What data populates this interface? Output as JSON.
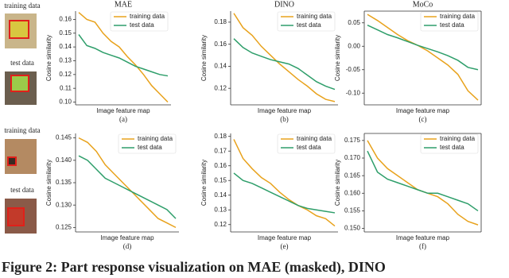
{
  "image_labels": [
    "training data",
    "test data",
    "training data",
    "test data"
  ],
  "caption": "Figure 2: Part response visualization on MAE (masked), DINO",
  "chart_data": [
    {
      "type": "line",
      "title": "MAE",
      "xlabel": "Image feature map",
      "ylabel": "Cosine similarity",
      "panel": "(a)",
      "legend": "upper right",
      "box": false,
      "ylim": [
        0.098,
        0.166
      ],
      "yticks": [
        {
          "value": 0.1,
          "label": "0.10"
        },
        0.11,
        0.12,
        0.13,
        0.14,
        0.15,
        0.16
      ],
      "series": [
        {
          "name": "training data",
          "color": "#e8a21c",
          "values": [
            0.165,
            0.16,
            0.158,
            0.15,
            0.144,
            0.14,
            0.133,
            0.127,
            0.12,
            0.112,
            0.106,
            0.1
          ]
        },
        {
          "name": "test data",
          "color": "#2e9e6a",
          "values": [
            0.149,
            0.141,
            0.139,
            0.136,
            0.134,
            0.132,
            0.129,
            0.126,
            0.124,
            0.122,
            0.12,
            0.119
          ]
        }
      ]
    },
    {
      "type": "line",
      "title": "DINO",
      "xlabel": "Image feature map",
      "ylabel": "Cosine similarity",
      "panel": "(b)",
      "legend": "upper right",
      "box": false,
      "ylim": [
        0.105,
        0.19
      ],
      "yticks": [
        0.12,
        0.14,
        0.16,
        0.18
      ],
      "series": [
        {
          "name": "training data",
          "color": "#e8a21c",
          "values": [
            0.188,
            0.175,
            0.168,
            0.158,
            0.15,
            0.142,
            0.135,
            0.128,
            0.122,
            0.115,
            0.11,
            0.108
          ]
        },
        {
          "name": "test data",
          "color": "#2e9e6a",
          "values": [
            0.165,
            0.157,
            0.152,
            0.149,
            0.146,
            0.144,
            0.142,
            0.138,
            0.132,
            0.126,
            0.122,
            0.119
          ]
        }
      ]
    },
    {
      "type": "line",
      "title": "MoCo",
      "xlabel": "Image feature map",
      "ylabel": "Cosine similarity",
      "panel": "(c)",
      "legend": "upper right",
      "box": true,
      "ylim": [
        -0.125,
        0.075
      ],
      "yticks": [
        {
          "value": -0.1,
          "label": "-0.10"
        },
        -0.05,
        {
          "value": 0,
          "label": "0.00"
        },
        0.05
      ],
      "series": [
        {
          "name": "training data",
          "color": "#e8a21c",
          "values": [
            0.068,
            0.055,
            0.04,
            0.025,
            0.012,
            0.002,
            -0.01,
            -0.025,
            -0.04,
            -0.06,
            -0.095,
            -0.115
          ]
        },
        {
          "name": "test data",
          "color": "#2e9e6a",
          "values": [
            0.045,
            0.035,
            0.025,
            0.018,
            0.01,
            0.002,
            -0.005,
            -0.012,
            -0.02,
            -0.03,
            -0.045,
            -0.05
          ]
        }
      ]
    },
    {
      "type": "line",
      "xlabel": "Image feature map",
      "ylabel": "Cosine similarity",
      "panel": "(d)",
      "legend": "upper right",
      "box": false,
      "ylim": [
        0.124,
        0.146
      ],
      "yticks": [
        0.125,
        {
          "value": 0.13,
          "label": "0.130"
        },
        0.135,
        {
          "value": 0.14,
          "label": "0.140"
        },
        0.145
      ],
      "series": [
        {
          "name": "training data",
          "color": "#e8a21c",
          "values": [
            0.145,
            0.144,
            0.142,
            0.139,
            0.137,
            0.135,
            0.133,
            0.131,
            0.129,
            0.127,
            0.126,
            0.125
          ]
        },
        {
          "name": "test data",
          "color": "#2e9e6a",
          "values": [
            0.141,
            0.14,
            0.138,
            0.136,
            0.135,
            0.134,
            0.133,
            0.132,
            0.131,
            0.13,
            0.129,
            0.127
          ]
        }
      ]
    },
    {
      "type": "line",
      "xlabel": "Image feature map",
      "ylabel": "Cosine similarity",
      "panel": "(e)",
      "legend": "upper right",
      "box": false,
      "ylim": [
        0.115,
        0.182
      ],
      "yticks": [
        0.12,
        0.13,
        0.14,
        0.15,
        0.16,
        0.17,
        0.18
      ],
      "series": [
        {
          "name": "training data",
          "color": "#e8a21c",
          "values": [
            0.178,
            0.165,
            0.158,
            0.152,
            0.148,
            0.142,
            0.137,
            0.133,
            0.13,
            0.126,
            0.124,
            0.119
          ]
        },
        {
          "name": "test data",
          "color": "#2e9e6a",
          "values": [
            0.155,
            0.15,
            0.148,
            0.145,
            0.142,
            0.139,
            0.136,
            0.133,
            0.131,
            0.13,
            0.129,
            0.128
          ]
        }
      ]
    },
    {
      "type": "line",
      "xlabel": "Image feature map",
      "ylabel": "Cosine similarity",
      "panel": "(f)",
      "legend": "upper right",
      "box": true,
      "ylim": [
        0.149,
        0.177
      ],
      "yticks": [
        {
          "value": 0.15,
          "label": "0.150"
        },
        0.155,
        {
          "value": 0.16,
          "label": "0.160"
        },
        0.165,
        {
          "value": 0.17,
          "label": "0.170"
        },
        0.175
      ],
      "series": [
        {
          "name": "training data",
          "color": "#e8a21c",
          "values": [
            0.175,
            0.17,
            0.167,
            0.165,
            0.163,
            0.161,
            0.16,
            0.159,
            0.157,
            0.154,
            0.152,
            0.151
          ]
        },
        {
          "name": "test data",
          "color": "#2e9e6a",
          "values": [
            0.172,
            0.166,
            0.164,
            0.163,
            0.162,
            0.161,
            0.16,
            0.16,
            0.159,
            0.158,
            0.157,
            0.155
          ]
        }
      ]
    }
  ]
}
